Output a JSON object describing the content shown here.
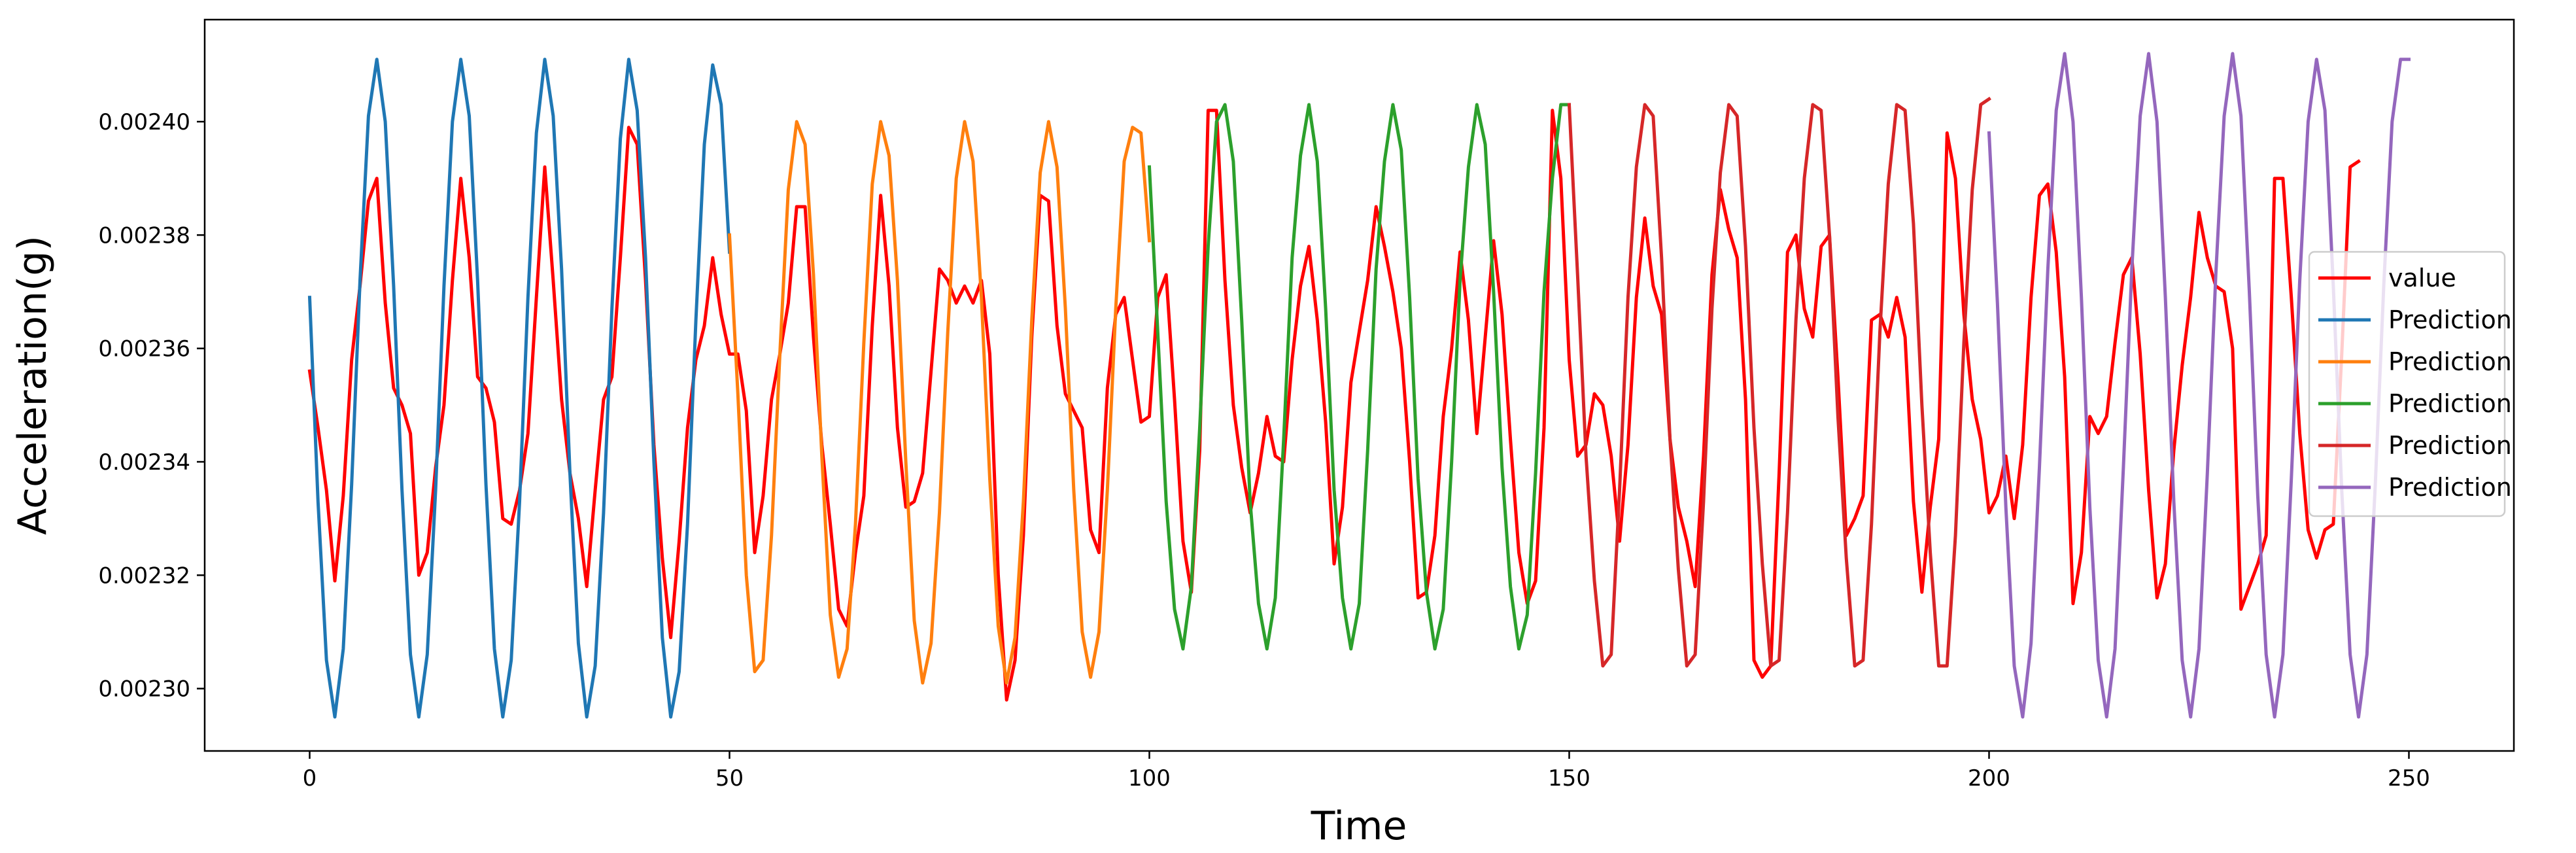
{
  "chart_data": {
    "type": "line",
    "title": "",
    "xlabel": "Time",
    "ylabel": "Acceleration(g)",
    "xlim": [
      -12.5,
      262.5
    ],
    "ylim": [
      0.002289,
      0.002418
    ],
    "xticks": [
      0,
      50,
      100,
      150,
      200,
      250
    ],
    "yticks": [
      0.0023,
      0.00232,
      0.00234,
      0.00236,
      0.00238,
      0.0024
    ],
    "ytick_labels": [
      "0.00230",
      "0.00232",
      "0.00234",
      "0.00236",
      "0.00238",
      "0.00240"
    ],
    "grid": false,
    "legend_position": "right",
    "series": [
      {
        "name": "value",
        "color": "#ff0000",
        "x_start": 0,
        "values": [
          0.002356,
          0.002346,
          0.002335,
          0.002319,
          0.002334,
          0.002358,
          0.002371,
          0.002386,
          0.00239,
          0.002368,
          0.002353,
          0.00235,
          0.002345,
          0.00232,
          0.002324,
          0.002339,
          0.00235,
          0.002372,
          0.00239,
          0.002376,
          0.002355,
          0.002353,
          0.002347,
          0.00233,
          0.002329,
          0.002335,
          0.002345,
          0.002369,
          0.002392,
          0.002372,
          0.002351,
          0.002338,
          0.00233,
          0.002318,
          0.002335,
          0.002351,
          0.002355,
          0.002376,
          0.002399,
          0.002396,
          0.002372,
          0.002343,
          0.002323,
          0.002309,
          0.002326,
          0.002346,
          0.002358,
          0.002364,
          0.002376,
          0.002366,
          0.002359,
          0.002359,
          0.002349,
          0.002324,
          0.002334,
          0.002351,
          0.002359,
          0.002368,
          0.002385,
          0.002385,
          0.002362,
          0.002343,
          0.002329,
          0.002314,
          0.002311,
          0.002324,
          0.002334,
          0.002364,
          0.002387,
          0.002371,
          0.002346,
          0.002332,
          0.002333,
          0.002338,
          0.002356,
          0.002374,
          0.002372,
          0.002368,
          0.002371,
          0.002368,
          0.002372,
          0.002359,
          0.00232,
          0.002298,
          0.002305,
          0.002327,
          0.002362,
          0.002387,
          0.002386,
          0.002364,
          0.002352,
          0.002349,
          0.002346,
          0.002328,
          0.002324,
          0.002353,
          0.002366,
          0.002369,
          0.002358,
          0.002347,
          0.002348,
          0.002369,
          0.002373,
          0.002351,
          0.002326,
          0.002317,
          0.002342,
          0.002402,
          0.002402,
          0.002372,
          0.00235,
          0.002339,
          0.002331,
          0.002338,
          0.002348,
          0.002341,
          0.00234,
          0.002358,
          0.002371,
          0.002378,
          0.002365,
          0.002347,
          0.002322,
          0.002332,
          0.002354,
          0.002363,
          0.002372,
          0.002385,
          0.002378,
          0.00237,
          0.00236,
          0.00234,
          0.002316,
          0.002317,
          0.002327,
          0.002348,
          0.00236,
          0.002377,
          0.002365,
          0.002345,
          0.002362,
          0.002379,
          0.002366,
          0.002344,
          0.002324,
          0.002315,
          0.002319,
          0.002346,
          0.002402,
          0.00239,
          0.002358,
          0.002341,
          0.002343,
          0.002352,
          0.00235,
          0.002341,
          0.002326,
          0.002343,
          0.002369,
          0.002383,
          0.002371,
          0.002366,
          0.002344,
          0.002332,
          0.002326,
          0.002318,
          0.002341,
          0.002373,
          0.002388,
          0.002381,
          0.002376,
          0.002351,
          0.002305,
          0.002302,
          0.002304,
          0.002338,
          0.002377,
          0.00238,
          0.002367,
          0.002362,
          0.002378,
          0.00238,
          0.002355,
          0.002327,
          0.00233,
          0.002334,
          0.002365,
          0.002366,
          0.002362,
          0.002369,
          0.002362,
          0.002333,
          0.002317,
          0.002332,
          0.002344,
          0.002398,
          0.00239,
          0.002366,
          0.002351,
          0.002344,
          0.002331,
          0.002334,
          0.002341,
          0.00233,
          0.002343,
          0.002369,
          0.002387,
          0.002389,
          0.002377,
          0.002355,
          0.002315,
          0.002324,
          0.002348,
          0.002345,
          0.002348,
          0.002361,
          0.002373,
          0.002376,
          0.002359,
          0.002335,
          0.002316,
          0.002322,
          0.002342,
          0.002357,
          0.002369,
          0.002384,
          0.002376,
          0.002371,
          0.00237,
          0.00236,
          0.002314,
          0.002318,
          0.002322,
          0.002327,
          0.00239,
          0.00239,
          0.002369,
          0.002345,
          0.002328,
          0.002323,
          0.002328,
          0.002329,
          0.002359,
          0.002392,
          0.002393
        ]
      },
      {
        "name": "Prediction",
        "color": "#1f77b4",
        "x_start": 0,
        "values": [
          0.002369,
          0.002333,
          0.002305,
          0.002295,
          0.002307,
          0.002336,
          0.002372,
          0.002401,
          0.002411,
          0.0024,
          0.002371,
          0.002335,
          0.002306,
          0.002295,
          0.002306,
          0.002335,
          0.002371,
          0.0024,
          0.002411,
          0.002401,
          0.002372,
          0.002336,
          0.002307,
          0.002295,
          0.002305,
          0.002333,
          0.002369,
          0.002398,
          0.002411,
          0.002401,
          0.002374,
          0.002338,
          0.002308,
          0.002295,
          0.002304,
          0.002331,
          0.002367,
          0.002397,
          0.002411,
          0.002402,
          0.002376,
          0.00234,
          0.002309,
          0.002295,
          0.002303,
          0.002329,
          0.002365,
          0.002396,
          0.00241,
          0.002403,
          0.002377
        ]
      },
      {
        "name": "Prediction",
        "color": "#ff7f0e",
        "x_start": 50,
        "values": [
          0.00238,
          0.002352,
          0.00232,
          0.002303,
          0.002305,
          0.002327,
          0.002359,
          0.002388,
          0.0024,
          0.002396,
          0.002373,
          0.002341,
          0.002313,
          0.002302,
          0.002307,
          0.002329,
          0.002361,
          0.002389,
          0.0024,
          0.002394,
          0.002372,
          0.00234,
          0.002312,
          0.002301,
          0.002308,
          0.002331,
          0.002363,
          0.00239,
          0.0024,
          0.002393,
          0.002369,
          0.002337,
          0.002311,
          0.002301,
          0.002309,
          0.002333,
          0.002365,
          0.002391,
          0.0024,
          0.002392,
          0.002367,
          0.002335,
          0.00231,
          0.002302,
          0.00231,
          0.002335,
          0.002367,
          0.002393,
          0.002399,
          0.002398,
          0.002379
        ]
      },
      {
        "name": "Prediction",
        "color": "#2ca02c",
        "x_start": 100,
        "values": [
          0.002392,
          0.002363,
          0.002333,
          0.002314,
          0.002307,
          0.002318,
          0.002346,
          0.002378,
          0.0024,
          0.002403,
          0.002393,
          0.002365,
          0.002333,
          0.002315,
          0.002307,
          0.002316,
          0.002344,
          0.002376,
          0.002394,
          0.002403,
          0.002393,
          0.002367,
          0.002335,
          0.002316,
          0.002307,
          0.002315,
          0.002342,
          0.002374,
          0.002393,
          0.002403,
          0.002395,
          0.002369,
          0.002337,
          0.002317,
          0.002307,
          0.002314,
          0.00234,
          0.002372,
          0.002392,
          0.002403,
          0.002396,
          0.00237,
          0.002339,
          0.002318,
          0.002307,
          0.002313,
          0.002338,
          0.00237,
          0.00239,
          0.002403,
          0.002403
        ]
      },
      {
        "name": "Prediction",
        "color": "#d62728",
        "x_start": 150,
        "values": [
          0.002403,
          0.002373,
          0.002341,
          0.002319,
          0.002304,
          0.002306,
          0.002335,
          0.002369,
          0.002392,
          0.002403,
          0.002401,
          0.002376,
          0.002344,
          0.002321,
          0.002304,
          0.002306,
          0.002333,
          0.002367,
          0.002391,
          0.002403,
          0.002401,
          0.002378,
          0.002346,
          0.002322,
          0.002304,
          0.002305,
          0.002331,
          0.002365,
          0.00239,
          0.002403,
          0.002402,
          0.00238,
          0.002348,
          0.002323,
          0.002304,
          0.002305,
          0.002329,
          0.002363,
          0.002389,
          0.002403,
          0.002402,
          0.002382,
          0.00235,
          0.002324,
          0.002304,
          0.002304,
          0.002327,
          0.002361,
          0.002388,
          0.002403,
          0.002404
        ]
      },
      {
        "name": "Prediction",
        "color": "#9467bd",
        "x_start": 200,
        "values": [
          0.002398,
          0.002368,
          0.002332,
          0.002304,
          0.002295,
          0.002308,
          0.002339,
          0.002374,
          0.002402,
          0.002412,
          0.0024,
          0.002369,
          0.002332,
          0.002305,
          0.002295,
          0.002307,
          0.002339,
          0.002374,
          0.002401,
          0.002412,
          0.0024,
          0.002369,
          0.002333,
          0.002305,
          0.002295,
          0.002307,
          0.002338,
          0.002373,
          0.002401,
          0.002412,
          0.002401,
          0.00237,
          0.002334,
          0.002306,
          0.002295,
          0.002306,
          0.002337,
          0.002372,
          0.0024,
          0.002411,
          0.002402,
          0.002371,
          0.002335,
          0.002306,
          0.002295,
          0.002306,
          0.002336,
          0.002371,
          0.0024,
          0.002411,
          0.002411
        ]
      }
    ]
  }
}
